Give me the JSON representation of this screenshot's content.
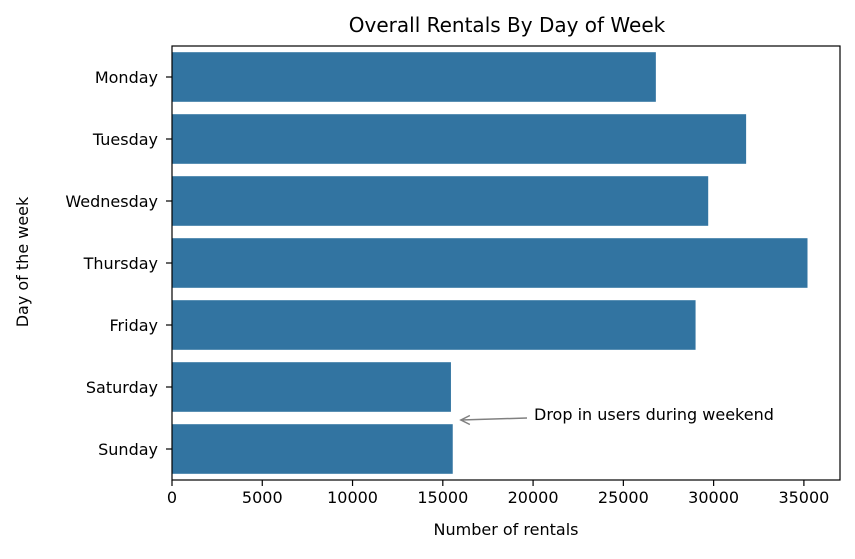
{
  "chart_data": {
    "type": "bar",
    "orientation": "horizontal",
    "title": "Overall Rentals By Day of Week",
    "xlabel": "Number of rentals",
    "ylabel": "Day of the week",
    "categories": [
      "Monday",
      "Tuesday",
      "Wednesday",
      "Thursday",
      "Friday",
      "Saturday",
      "Sunday"
    ],
    "values": [
      26800,
      31800,
      29700,
      35200,
      29000,
      15450,
      15550
    ],
    "xlim": [
      0,
      37000
    ],
    "xticks": [
      0,
      5000,
      10000,
      15000,
      20000,
      25000,
      30000,
      35000
    ],
    "bar_color": "#3274a1",
    "grid": false,
    "legend": "none",
    "annotation": {
      "text": "Drop in users during weekend",
      "arrow_color": "#808080",
      "points_to": {
        "x": 16000,
        "category_between": [
          "Saturday",
          "Sunday"
        ]
      }
    }
  }
}
